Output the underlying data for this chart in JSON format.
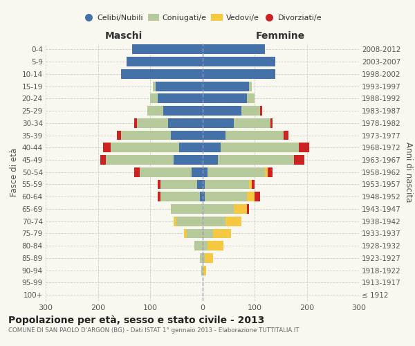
{
  "age_groups": [
    "100+",
    "95-99",
    "90-94",
    "85-89",
    "80-84",
    "75-79",
    "70-74",
    "65-69",
    "60-64",
    "55-59",
    "50-54",
    "45-49",
    "40-44",
    "35-39",
    "30-34",
    "25-29",
    "20-24",
    "15-19",
    "10-14",
    "5-9",
    "0-4"
  ],
  "birth_years": [
    "≤ 1912",
    "1913-1917",
    "1918-1922",
    "1923-1927",
    "1928-1932",
    "1933-1937",
    "1938-1942",
    "1943-1947",
    "1948-1952",
    "1953-1957",
    "1958-1962",
    "1963-1967",
    "1968-1972",
    "1973-1977",
    "1978-1982",
    "1983-1987",
    "1988-1992",
    "1993-1997",
    "1998-2002",
    "2003-2007",
    "2008-2012"
  ],
  "males": {
    "celibi": [
      0,
      0,
      0,
      0,
      0,
      0,
      0,
      0,
      5,
      10,
      20,
      55,
      45,
      60,
      65,
      75,
      85,
      90,
      155,
      145,
      135
    ],
    "coniugati": [
      0,
      0,
      2,
      5,
      15,
      30,
      50,
      60,
      75,
      70,
      100,
      130,
      130,
      95,
      60,
      30,
      15,
      5,
      0,
      0,
      0
    ],
    "vedovi": [
      0,
      0,
      0,
      0,
      0,
      5,
      5,
      0,
      0,
      0,
      0,
      0,
      0,
      0,
      0,
      0,
      0,
      0,
      0,
      0,
      0
    ],
    "divorziati": [
      0,
      0,
      0,
      0,
      0,
      0,
      0,
      0,
      5,
      5,
      10,
      10,
      15,
      8,
      5,
      0,
      0,
      0,
      0,
      0,
      0
    ]
  },
  "females": {
    "nubili": [
      0,
      0,
      0,
      0,
      0,
      0,
      0,
      0,
      5,
      5,
      10,
      30,
      35,
      45,
      60,
      75,
      85,
      90,
      140,
      140,
      120
    ],
    "coniugate": [
      0,
      0,
      2,
      5,
      10,
      20,
      45,
      60,
      80,
      85,
      110,
      145,
      150,
      110,
      70,
      35,
      15,
      5,
      0,
      0,
      0
    ],
    "vedove": [
      0,
      0,
      5,
      15,
      30,
      35,
      30,
      25,
      15,
      5,
      5,
      0,
      0,
      0,
      0,
      0,
      0,
      0,
      0,
      0,
      0
    ],
    "divorziate": [
      0,
      0,
      0,
      0,
      0,
      0,
      0,
      5,
      10,
      5,
      10,
      20,
      20,
      10,
      5,
      5,
      0,
      0,
      0,
      0,
      0
    ]
  },
  "colors": {
    "celibi": "#4472a8",
    "coniugati": "#b5c99a",
    "vedovi": "#f5c842",
    "divorziati": "#cc2222"
  },
  "title": "Popolazione per età, sesso e stato civile - 2013",
  "subtitle": "COMUNE DI SAN PAOLO D'ARGON (BG) - Dati ISTAT 1° gennaio 2013 - Elaborazione TUTTITALIA.IT",
  "xlabel_maschi": "Maschi",
  "xlabel_femmine": "Femmine",
  "ylabel_left": "Fasce di età",
  "ylabel_right": "Anni di nascita",
  "xlim": 300,
  "legend_labels": [
    "Celibi/Nubili",
    "Coniugati/e",
    "Vedovi/e",
    "Divorziati/e"
  ],
  "bg_color": "#f8f8f0",
  "grid_color": "#cccccc"
}
